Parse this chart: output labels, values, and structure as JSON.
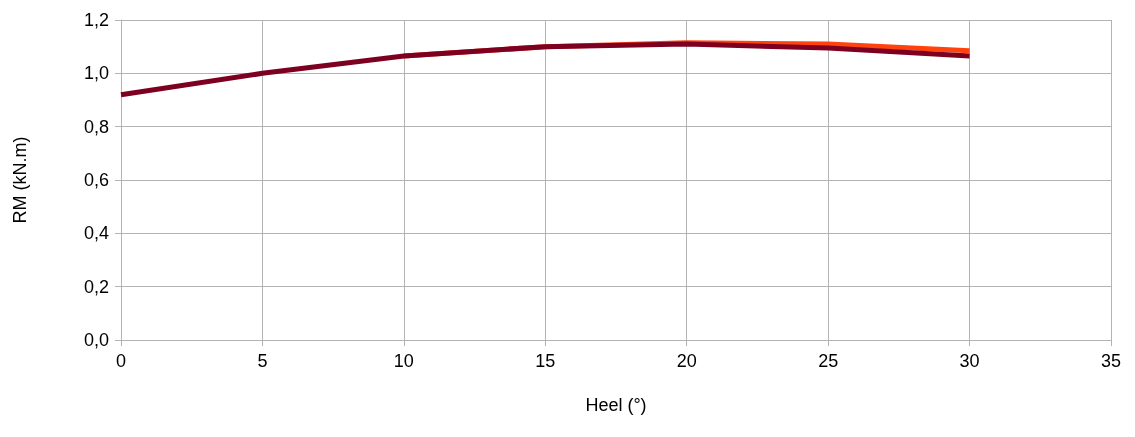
{
  "chart_data": {
    "type": "line",
    "xlabel": "Heel (°)",
    "ylabel": "RM (kN.m)",
    "x": [
      0,
      5,
      10,
      15,
      20,
      25,
      30
    ],
    "series": [
      {
        "color": "#ff420e",
        "values": [
          null,
          null,
          1.065,
          1.1,
          1.115,
          1.11,
          1.085
        ]
      },
      {
        "color": "#7e0021",
        "values": [
          0.92,
          1.0,
          1.065,
          1.1,
          1.11,
          1.095,
          1.065
        ]
      }
    ],
    "xlim": [
      0,
      35
    ],
    "xticks": [
      0,
      5,
      10,
      15,
      20,
      25,
      30,
      35
    ],
    "ylim": [
      0,
      1.2
    ],
    "yticks": [
      {
        "value": 0,
        "label": "0,0"
      },
      {
        "value": 0.2,
        "label": "0,2"
      },
      {
        "value": 0.4,
        "label": "0,4"
      },
      {
        "value": 0.6,
        "label": "0,6"
      },
      {
        "value": 0.8,
        "label": "0,8"
      },
      {
        "value": 1,
        "label": "1,0"
      },
      {
        "value": 1.2,
        "label": "1,2"
      }
    ],
    "grid": true,
    "marker": "none",
    "line_style": "solid"
  }
}
